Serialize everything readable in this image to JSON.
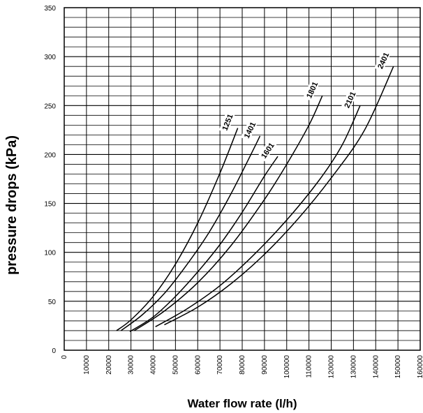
{
  "chart_data": {
    "type": "line",
    "title": "",
    "xlabel": "Water flow rate (l/h)",
    "ylabel": "pressure drops (kPa)",
    "xlim": [
      0,
      160000
    ],
    "ylim": [
      0,
      350
    ],
    "x_ticks": [
      0,
      10000,
      20000,
      30000,
      40000,
      50000,
      60000,
      70000,
      80000,
      90000,
      100000,
      110000,
      120000,
      130000,
      140000,
      150000,
      160000
    ],
    "y_ticks": [
      0,
      50,
      100,
      150,
      200,
      250,
      300,
      350
    ],
    "grid": true,
    "legend": "none",
    "series": [
      {
        "name": "1251",
        "x": [
          23500,
          30000,
          40000,
          50000,
          60000,
          70000,
          78000
        ],
        "y": [
          20,
          31,
          55,
          88,
          130,
          181,
          227
        ]
      },
      {
        "name": "1401",
        "x": [
          25500,
          35000,
          45000,
          55000,
          65000,
          75000,
          85000,
          88000
        ],
        "y": [
          20,
          36,
          58,
          87,
          120,
          160,
          205,
          219
        ]
      },
      {
        "name": "1601",
        "x": [
          29500,
          40000,
          50000,
          60000,
          70000,
          80000,
          90000,
          96000
        ],
        "y": [
          19,
          34,
          55,
          80,
          108,
          141,
          178,
          198
        ]
      },
      {
        "name": "1801",
        "x": [
          31500,
          45000,
          60000,
          75000,
          90000,
          100000,
          110000,
          116000
        ],
        "y": [
          20,
          40,
          69,
          107,
          154,
          190,
          230,
          260
        ]
      },
      {
        "name": "2101",
        "x": [
          41000,
          55000,
          70000,
          85000,
          100000,
          115000,
          125000,
          133000
        ],
        "y": [
          24,
          42,
          66,
          97,
          133,
          175,
          210,
          250
        ]
      },
      {
        "name": "2401",
        "x": [
          45000,
          60000,
          75000,
          90000,
          105000,
          120000,
          135000,
          148000
        ],
        "y": [
          26,
          44,
          68,
          98,
          134,
          176,
          225,
          290
        ]
      }
    ]
  }
}
